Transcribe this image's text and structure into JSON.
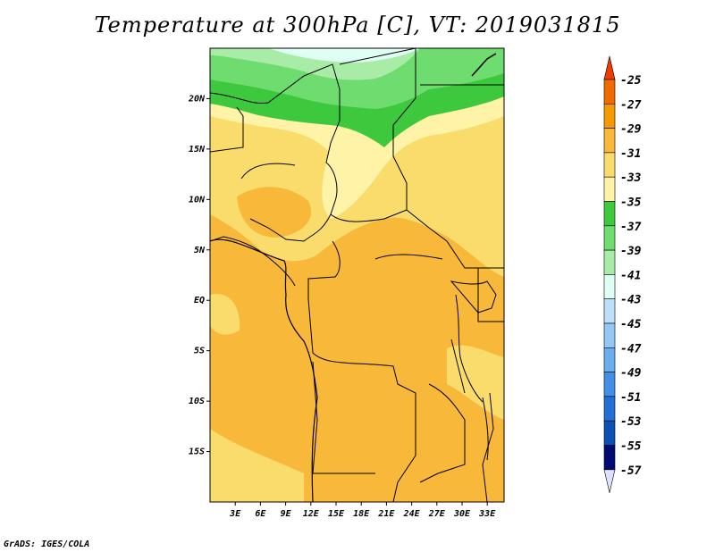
{
  "title": "Temperature at 300hPa [C], VT: 2019031815",
  "credit": "GrADS: IGES/COLA",
  "map": {
    "lat_labels": [
      "20N",
      "15N",
      "10N",
      "5N",
      "EQ",
      "5S",
      "10S",
      "15S"
    ],
    "lat_values": [
      20,
      15,
      10,
      5,
      0,
      -5,
      -10,
      -15
    ],
    "lon_labels": [
      "3E",
      "6E",
      "9E",
      "12E",
      "15E",
      "18E",
      "21E",
      "24E",
      "27E",
      "30E",
      "33E"
    ],
    "lon_values": [
      3,
      6,
      9,
      12,
      15,
      18,
      21,
      24,
      27,
      30,
      33
    ],
    "lon_range": [
      0,
      35
    ],
    "lat_range": [
      -20,
      25
    ]
  },
  "colorbar": {
    "labels": [
      "-25",
      "-27",
      "-29",
      "-31",
      "-33",
      "-35",
      "-37",
      "-39",
      "-41",
      "-43",
      "-45",
      "-47",
      "-49",
      "-51",
      "-53",
      "-55",
      "-57"
    ],
    "colors": [
      "#f06a00",
      "#f59a00",
      "#f8b83a",
      "#f9dc6c",
      "#fff3a8",
      "#3ec83e",
      "#6fdc6f",
      "#a8eca8",
      "#e0fff4",
      "#bde0fa",
      "#94c8f4",
      "#6aaeee",
      "#3f90e6",
      "#2070d6",
      "#0c50b4",
      "#000a73"
    ],
    "top_arrow_color": "#f03c00",
    "bottom_arrow_color": "#e0e0ff"
  }
}
